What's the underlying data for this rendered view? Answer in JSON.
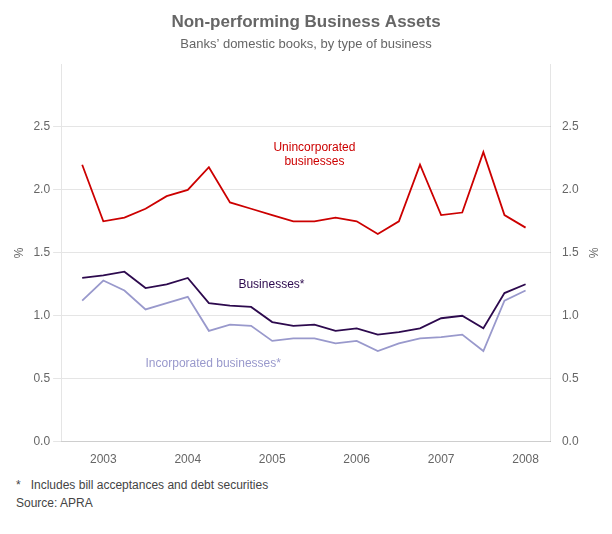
{
  "chart_data": {
    "type": "line",
    "title": "Non-performing Business Assets",
    "subtitle": "Banks’ domestic books, by type of business",
    "footnote": "*   Includes bill acceptances and debt securities",
    "source": "Source: APRA",
    "ylabel": "%",
    "y2label": "%",
    "x": [
      2002.75,
      2003.0,
      2003.25,
      2003.5,
      2003.75,
      2004.0,
      2004.25,
      2004.5,
      2004.75,
      2005.0,
      2005.25,
      2005.5,
      2005.75,
      2006.0,
      2006.25,
      2006.5,
      2006.75,
      2007.0,
      2007.25,
      2007.5,
      2007.75,
      2008.0
    ],
    "series": [
      {
        "name": "Unincorporated\nbusinesses",
        "color": "#cc0000",
        "values": [
          2.2,
          1.75,
          1.78,
          1.85,
          1.95,
          2.0,
          2.18,
          1.9,
          1.85,
          1.8,
          1.75,
          1.75,
          1.78,
          1.75,
          1.65,
          1.75,
          2.2,
          1.8,
          1.82,
          2.3,
          1.8,
          1.7
        ]
      },
      {
        "name": "Businesses*",
        "color": "#2d0a4e",
        "values": [
          1.3,
          1.32,
          1.35,
          1.22,
          1.25,
          1.3,
          1.1,
          1.08,
          1.07,
          0.95,
          0.92,
          0.93,
          0.88,
          0.9,
          0.85,
          0.87,
          0.9,
          0.98,
          1.0,
          0.9,
          1.18,
          1.25
        ]
      },
      {
        "name": "Incorporated businesses*",
        "color": "#9999cc",
        "values": [
          1.12,
          1.28,
          1.2,
          1.05,
          1.1,
          1.15,
          0.88,
          0.93,
          0.92,
          0.8,
          0.82,
          0.82,
          0.78,
          0.8,
          0.72,
          0.78,
          0.82,
          0.83,
          0.85,
          0.72,
          1.12,
          1.2
        ]
      }
    ],
    "annotations": [
      {
        "text": "Unincorporated\nbusinesses",
        "x": 2005.5,
        "y": 2.18,
        "color": "#cc0000"
      },
      {
        "text": "Businesses*",
        "x": 2004.6,
        "y": 1.2,
        "color": "#2d0a4e"
      },
      {
        "text": "Incorporated businesses*",
        "x": 2003.5,
        "y": 0.67,
        "color": "#9999cc"
      }
    ],
    "xlim": [
      2002.5,
      2008.3
    ],
    "xticks": [
      2003,
      2004,
      2005,
      2006,
      2007,
      2008
    ],
    "ylim": [
      0.0,
      3.0
    ],
    "yticks": [
      {
        "value": 0.0,
        "label": "0.0"
      },
      0.5,
      {
        "value": 1.0,
        "label": "1.0"
      },
      1.5,
      {
        "value": 2.0,
        "label": "2.0"
      },
      2.5
    ],
    "y2lim": [
      0.0,
      3.0
    ],
    "y2ticks": [
      {
        "value": 0.0,
        "label": "0.0"
      },
      0.5,
      {
        "value": 1.0,
        "label": "1.0"
      },
      1.5,
      {
        "value": 2.0,
        "label": "2.0"
      },
      2.5
    ],
    "grid": true
  }
}
